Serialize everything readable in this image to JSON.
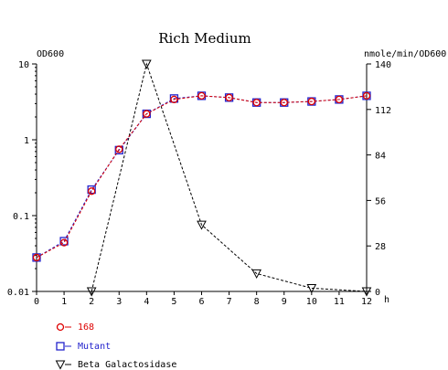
{
  "chart_data": {
    "type": "line",
    "title": "Rich Medium",
    "xlabel": "h",
    "ylabel_left": "OD600",
    "ylabel_right": "nmole/min/OD600",
    "x_ticks": [
      "0",
      "1",
      "2",
      "3",
      "4",
      "5",
      "6",
      "7",
      "8",
      "9",
      "10",
      "11",
      "12"
    ],
    "y_left_ticks": [
      "10",
      "1",
      "0.1",
      "0.01"
    ],
    "y_left_tick_values": [
      10,
      1,
      0.1,
      0.01
    ],
    "y_right_ticks": [
      "140",
      "112",
      "84",
      "56",
      "28",
      "0"
    ],
    "y_right_tick_values": [
      140,
      112,
      84,
      56,
      28,
      0
    ],
    "xlim": [
      0,
      12
    ],
    "ylim_left": [
      0.01,
      10
    ],
    "ylim_right": [
      0,
      140
    ],
    "y_left_scale": "log",
    "grid": false,
    "legend_position": "bottom-left",
    "series": [
      {
        "name": "168",
        "axis": "left",
        "marker": "circle",
        "color": "#dd0000",
        "x": [
          0,
          1,
          2,
          3,
          4,
          5,
          6,
          7,
          8,
          9,
          10,
          11,
          12
        ],
        "y": [
          0.028,
          0.044,
          0.21,
          0.75,
          2.2,
          3.4,
          3.8,
          3.6,
          3.1,
          3.1,
          3.2,
          3.4,
          3.8
        ]
      },
      {
        "name": "Mutant",
        "axis": "left",
        "marker": "square",
        "color": "#2222cc",
        "x": [
          0,
          1,
          2,
          3,
          4,
          5,
          6,
          7,
          8,
          9,
          10,
          11,
          12
        ],
        "y": [
          0.028,
          0.046,
          0.22,
          0.73,
          2.2,
          3.5,
          3.8,
          3.6,
          3.1,
          3.1,
          3.2,
          3.4,
          3.8
        ]
      },
      {
        "name": "Beta Galactosidase",
        "axis": "right",
        "marker": "triangle-down",
        "color": "#000000",
        "x": [
          2,
          4,
          6,
          8,
          10,
          12
        ],
        "y": [
          0,
          140,
          41,
          11,
          2,
          0
        ]
      }
    ]
  }
}
